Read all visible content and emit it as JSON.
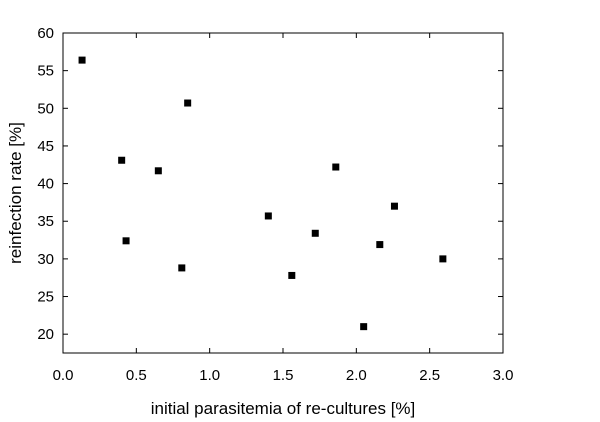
{
  "chart_data": {
    "type": "scatter",
    "title": "",
    "xlabel": "initial parasitemia of re-cultures [%]",
    "ylabel": "reinfection rate [%]",
    "xlim": [
      0.0,
      3.0
    ],
    "ylim": [
      17.5,
      60.0
    ],
    "xticks": [
      0.0,
      0.5,
      1.0,
      1.5,
      2.0,
      2.5,
      3.0
    ],
    "xtick_labels": [
      "0.0",
      "0.5",
      "1.0",
      "1.5",
      "2.0",
      "2.5",
      "3.0"
    ],
    "yticks": [
      20,
      25,
      30,
      35,
      40,
      45,
      50,
      55,
      60
    ],
    "ytick_labels": [
      "20",
      "25",
      "30",
      "35",
      "40",
      "45",
      "50",
      "55",
      "60"
    ],
    "grid": false,
    "marker": "square",
    "marker_color": "#000000",
    "points": [
      {
        "x": 0.13,
        "y": 56.4
      },
      {
        "x": 0.4,
        "y": 43.1
      },
      {
        "x": 0.43,
        "y": 32.4
      },
      {
        "x": 0.65,
        "y": 41.7
      },
      {
        "x": 0.81,
        "y": 28.8
      },
      {
        "x": 0.85,
        "y": 50.7
      },
      {
        "x": 1.4,
        "y": 35.7
      },
      {
        "x": 1.56,
        "y": 27.8
      },
      {
        "x": 1.72,
        "y": 33.4
      },
      {
        "x": 1.86,
        "y": 42.2
      },
      {
        "x": 2.05,
        "y": 21.0
      },
      {
        "x": 2.16,
        "y": 31.9
      },
      {
        "x": 2.26,
        "y": 37.0
      },
      {
        "x": 2.59,
        "y": 30.0
      }
    ]
  }
}
